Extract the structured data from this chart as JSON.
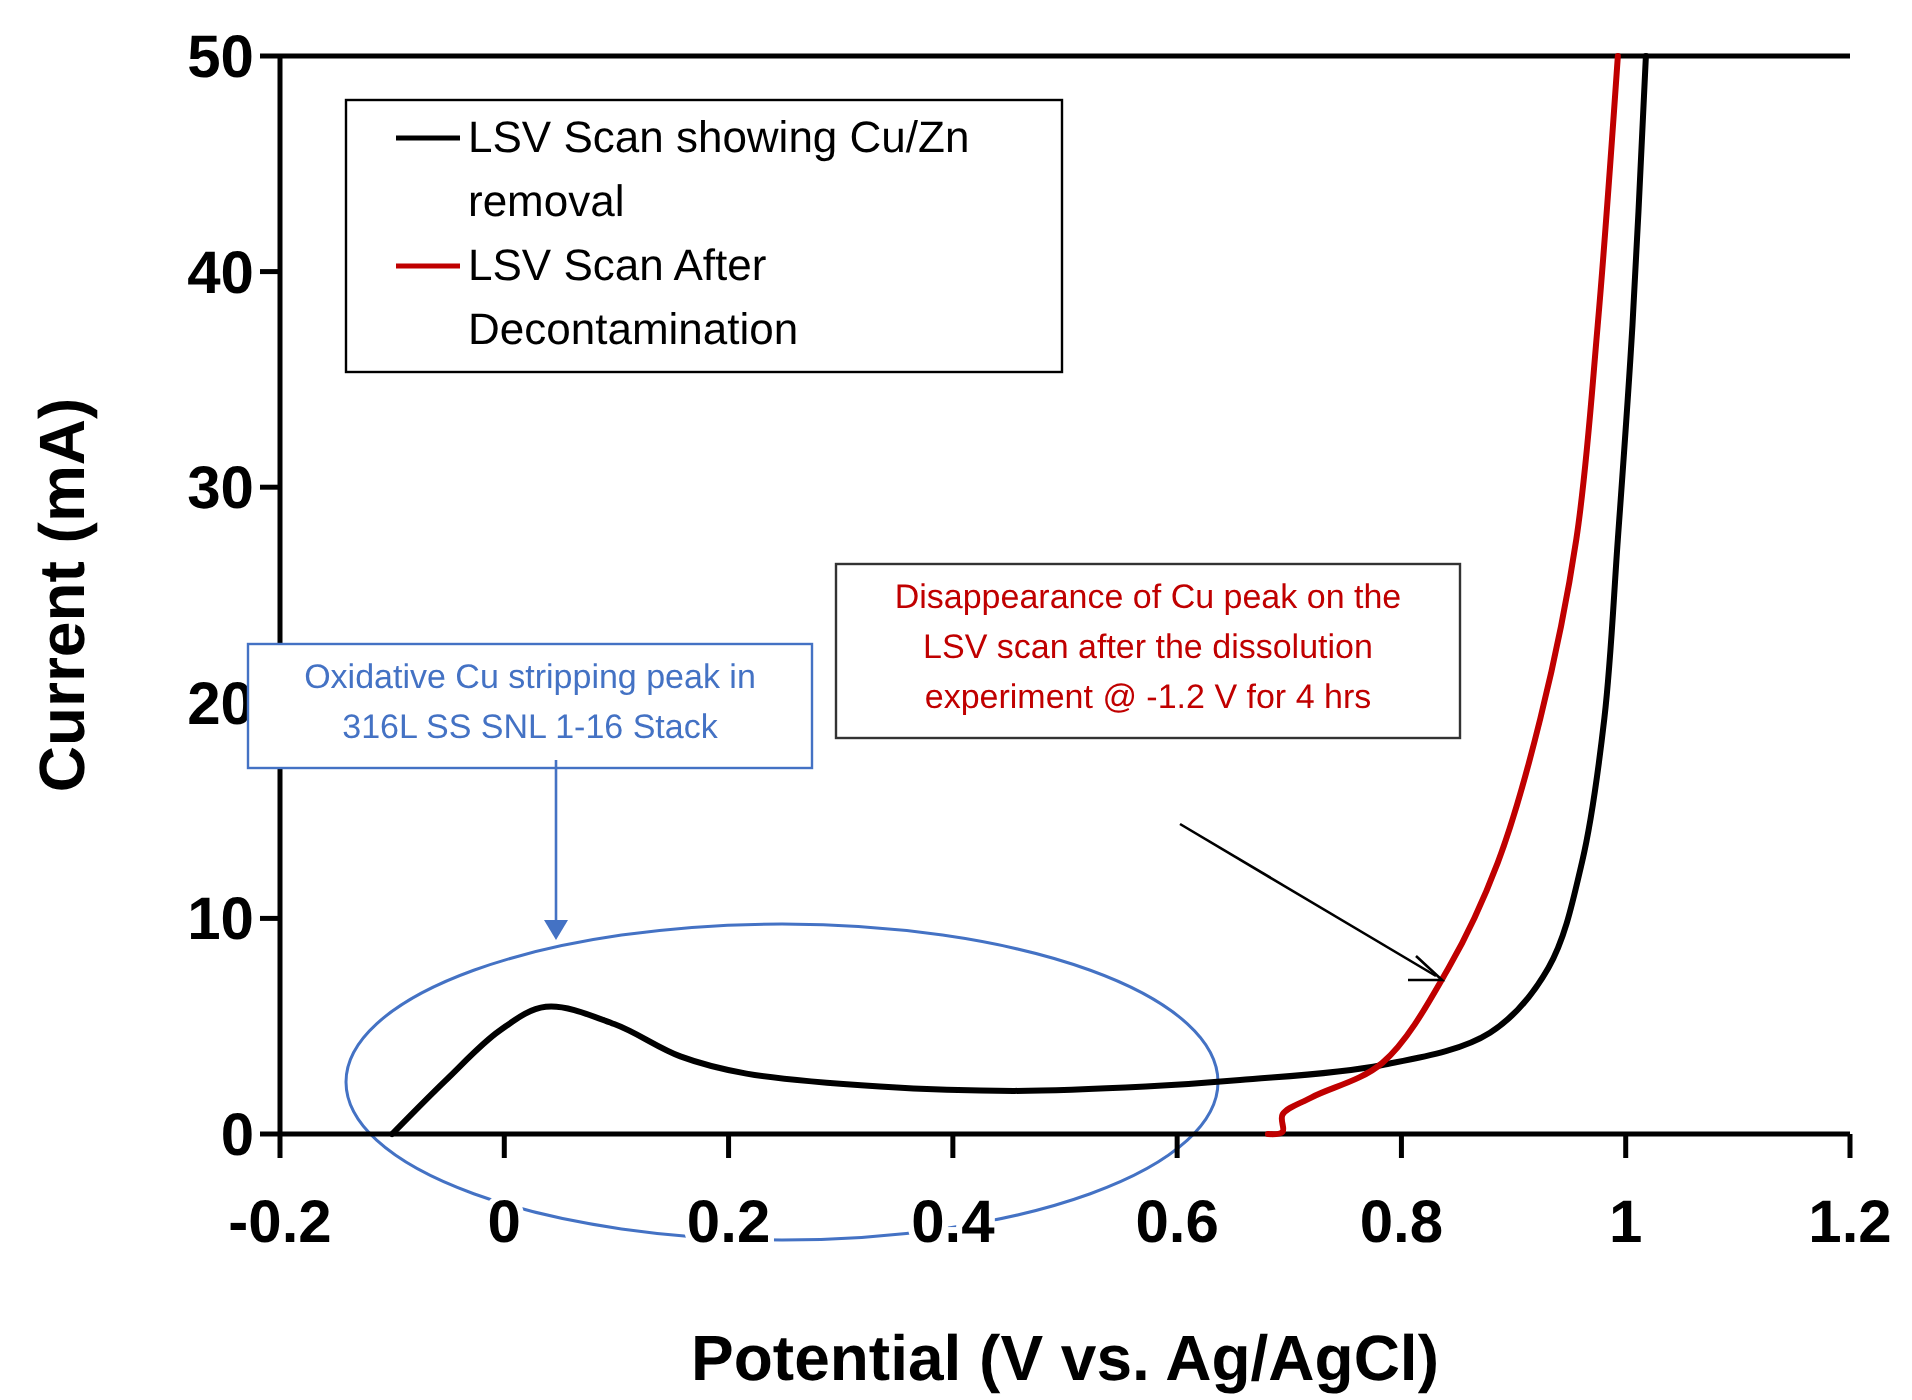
{
  "chart_data": {
    "type": "line",
    "xlabel": "Potential (V vs. Ag/AgCl)",
    "ylabel": "Current (mA)",
    "xlim": [
      -0.2,
      1.2
    ],
    "xticks": [
      -0.2,
      0,
      0.2,
      0.4,
      0.6,
      0.8,
      1,
      1.2
    ],
    "ylim": [
      0,
      50
    ],
    "yticks": [
      0,
      10,
      20,
      30,
      40,
      50
    ],
    "grid": false,
    "legend": "top left",
    "marker": "none",
    "line_style": "solid",
    "series": [
      {
        "name": "LSV Scan showing Cu/Zn removal",
        "color": "#000000",
        "x": [
          -0.1,
          -0.052,
          -0.004,
          0.037,
          0.098,
          0.157,
          0.216,
          0.335,
          0.455,
          0.572,
          0.656,
          0.783,
          0.879,
          0.931,
          0.961,
          0.981,
          0.993,
          1.006,
          1.018
        ],
        "values": [
          0,
          2.5,
          4.8,
          5.9,
          5.1,
          3.6,
          2.8,
          2.2,
          2.0,
          2.2,
          2.5,
          3.2,
          4.7,
          7.7,
          12.6,
          19.3,
          27.6,
          37.5,
          50
        ]
      },
      {
        "name": "LSV Scan After Decontamination",
        "color": "#c00000",
        "x": [
          0.681,
          0.694,
          0.694,
          0.72,
          0.783,
          0.842,
          0.886,
          0.924,
          0.956,
          0.975,
          0.993
        ],
        "values": [
          0,
          0.1,
          0.9,
          1.7,
          3.3,
          7.7,
          12.6,
          19.3,
          27.6,
          37.5,
          50
        ]
      }
    ],
    "annotations": [
      "Oxidative Cu stripping peak in 316L SS SNL 1-16 Stack",
      "Disappearance of Cu peak on the LSV scan after the dissolution experiment @ -1.2 V for 4 hrs"
    ]
  }
}
